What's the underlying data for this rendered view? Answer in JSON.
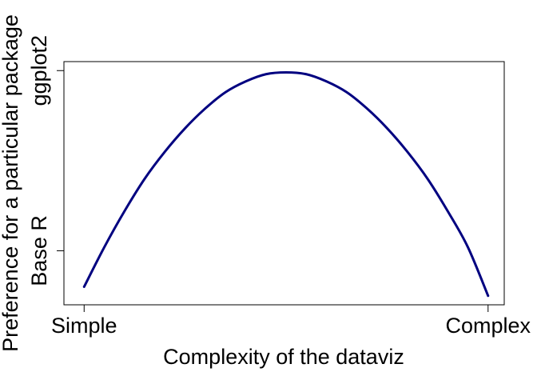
{
  "chart_data": {
    "type": "line",
    "title": "",
    "xlabel": "Complexity of the dataviz",
    "ylabel": "Preference for a particular package",
    "x_ticks": [
      {
        "value": 0,
        "label": "Simple"
      },
      {
        "value": 1,
        "label": "Complex"
      }
    ],
    "y_ticks": [
      {
        "value": 0,
        "label": "Base R"
      },
      {
        "value": 1,
        "label": "ggplot2"
      }
    ],
    "xlim": [
      -0.05,
      1.04
    ],
    "ylim": [
      -0.3,
      1.05
    ],
    "grid": false,
    "legend": "none",
    "series": [
      {
        "color": "#000080",
        "x": [
          0,
          0.05,
          0.1,
          0.15,
          0.2,
          0.25,
          0.3,
          0.35,
          0.4,
          0.45,
          0.5,
          0.55,
          0.6,
          0.65,
          0.7,
          0.75,
          0.8,
          0.85,
          0.9,
          0.95,
          1
        ],
        "y": [
          -0.2,
          0.02,
          0.22,
          0.4,
          0.55,
          0.68,
          0.79,
          0.88,
          0.94,
          0.98,
          0.99,
          0.98,
          0.94,
          0.88,
          0.79,
          0.68,
          0.55,
          0.4,
          0.22,
          0.02,
          -0.25
        ]
      }
    ]
  }
}
